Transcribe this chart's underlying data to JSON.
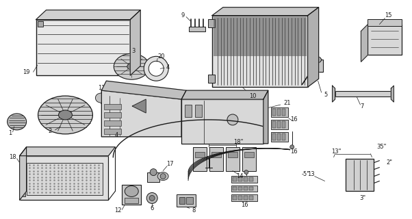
{
  "bg_color": "#ffffff",
  "fig_width": 6.02,
  "fig_height": 3.2,
  "dpi": 100,
  "lc": "#1a1a1a",
  "lw": 0.8,
  "font_size": 6.0
}
